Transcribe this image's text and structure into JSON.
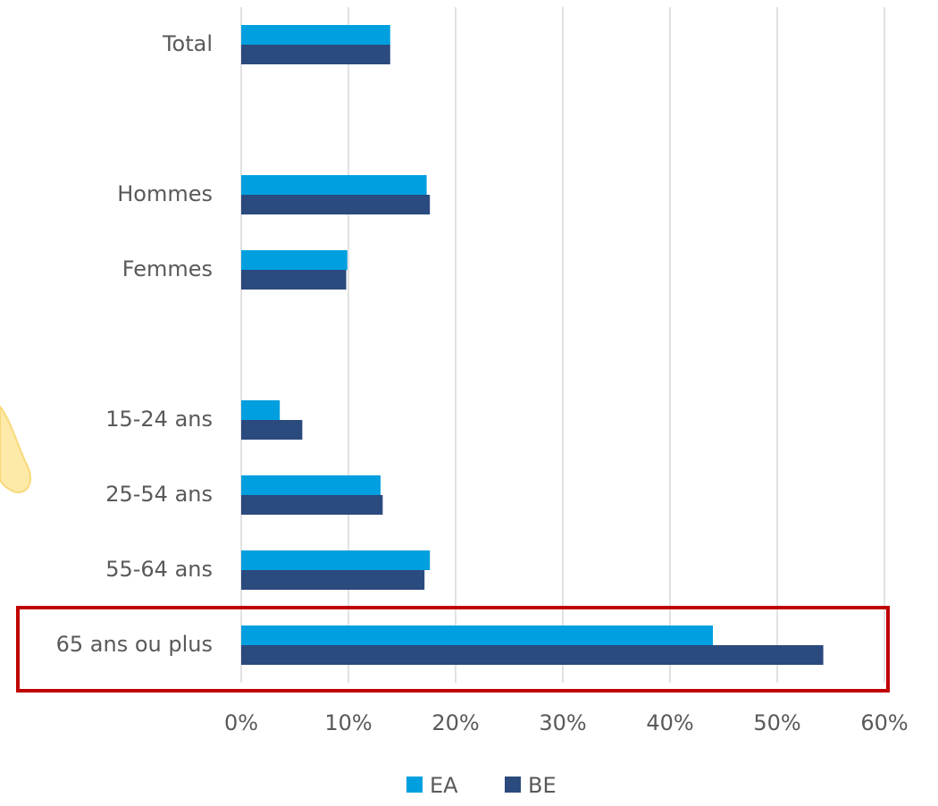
{
  "chart_data": {
    "type": "bar",
    "orientation": "horizontal",
    "categories": [
      "Total",
      null,
      "Hommes",
      "Femmes",
      null,
      "15-24 ans",
      "25-54 ans",
      "55-64 ans",
      "65 ans ou plus"
    ],
    "series": [
      {
        "name": "EA",
        "color": "#009fdf",
        "values": [
          13.9,
          null,
          17.3,
          9.9,
          null,
          3.6,
          13.0,
          17.6,
          44.0
        ]
      },
      {
        "name": "BE",
        "color": "#2b4a7e",
        "values": [
          13.9,
          null,
          17.6,
          9.8,
          null,
          5.7,
          13.2,
          17.1,
          54.3
        ]
      }
    ],
    "xlim": [
      0,
      60
    ],
    "xticks": [
      {
        "value": 0,
        "label": "0%"
      },
      {
        "value": 10,
        "label": "10%"
      },
      {
        "value": 20,
        "label": "20%"
      },
      {
        "value": 30,
        "label": "30%"
      },
      {
        "value": 40,
        "label": "40%"
      },
      {
        "value": 50,
        "label": "50%"
      },
      {
        "value": 60,
        "label": "60%"
      }
    ],
    "grid": true,
    "legend": "bottom"
  }
}
